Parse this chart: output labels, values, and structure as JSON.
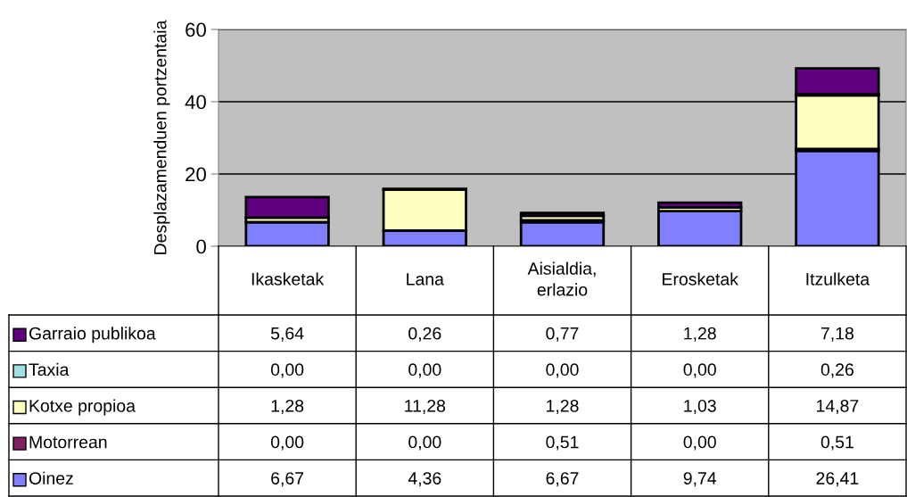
{
  "chart_data": {
    "type": "bar",
    "stacked": true,
    "ylabel": "Desplazamenduen portzentaia",
    "categories": [
      "Ikasketak",
      "Lana",
      "Aisialdia,\nerlazio",
      "Erosketak",
      "Itzulketa"
    ],
    "series": [
      {
        "name": "Oinez",
        "color": "#8080ff",
        "values": [
          6.67,
          4.36,
          6.67,
          9.74,
          26.41
        ],
        "value_labels": [
          "6,67",
          "4,36",
          "6,67",
          "9,74",
          "26,41"
        ]
      },
      {
        "name": "Motorrean",
        "color": "#802060",
        "values": [
          0.0,
          0.0,
          0.51,
          0.0,
          0.51
        ],
        "value_labels": [
          "0,00",
          "0,00",
          "0,51",
          "0,00",
          "0,51"
        ]
      },
      {
        "name": "Kotxe propioa",
        "color": "#ffffc0",
        "values": [
          1.28,
          11.28,
          1.28,
          1.03,
          14.87
        ],
        "value_labels": [
          "1,28",
          "11,28",
          "1,28",
          "1,03",
          "14,87"
        ]
      },
      {
        "name": "Taxia",
        "color": "#a0e0e0",
        "values": [
          0.0,
          0.0,
          0.0,
          0.0,
          0.26
        ],
        "value_labels": [
          "0,00",
          "0,00",
          "0,00",
          "0,00",
          "0,26"
        ]
      },
      {
        "name": "Garraio publikoa",
        "color": "#600080",
        "values": [
          5.64,
          0.26,
          0.77,
          1.28,
          7.18
        ],
        "value_labels": [
          "5,64",
          "0,26",
          "0,77",
          "1,28",
          "7,18"
        ]
      }
    ],
    "ylim": [
      0,
      60
    ],
    "yticks": [
      0,
      20,
      40,
      60
    ],
    "grid": "y",
    "legend": "bottom left"
  }
}
